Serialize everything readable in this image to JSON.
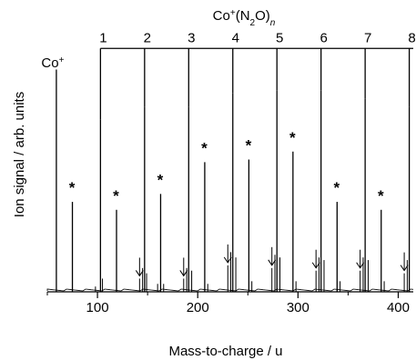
{
  "chart_data": {
    "type": "line",
    "title_parts": {
      "base": "Co",
      "charge": "+",
      "open": "(N",
      "sub": "2",
      "close": "O)",
      "n": "n"
    },
    "xlabel": "Mass-to-charge / u",
    "ylabel": "Ion signal / arb. units",
    "xlim": [
      50,
      415
    ],
    "ylim": [
      0,
      1.0
    ],
    "x_ticks": [
      100,
      200,
      300,
      400
    ],
    "x_minor_ticks": [
      50,
      150,
      250,
      350
    ],
    "peaks": [
      {
        "mz": 59,
        "intensity": 0.84,
        "label": "Co+"
      },
      {
        "mz": 75,
        "intensity": 0.34,
        "mark": "*"
      },
      {
        "mz": 103,
        "intensity": 0.65,
        "n": 1
      },
      {
        "mz": 119,
        "intensity": 0.31,
        "mark": "*"
      },
      {
        "mz": 147,
        "intensity": 0.7,
        "n": 2
      },
      {
        "mz": 163,
        "intensity": 0.37,
        "mark": "*"
      },
      {
        "mz": 191,
        "intensity": 0.7,
        "n": 3
      },
      {
        "mz": 207,
        "intensity": 0.49,
        "mark": "*"
      },
      {
        "mz": 235,
        "intensity": 0.75,
        "n": 4
      },
      {
        "mz": 251,
        "intensity": 0.5,
        "mark": "*"
      },
      {
        "mz": 279,
        "intensity": 0.76,
        "n": 5
      },
      {
        "mz": 295,
        "intensity": 0.53,
        "mark": "*"
      },
      {
        "mz": 323,
        "intensity": 0.76,
        "n": 6
      },
      {
        "mz": 339,
        "intensity": 0.34,
        "mark": "*"
      },
      {
        "mz": 367,
        "intensity": 0.73,
        "n": 7
      },
      {
        "mz": 383,
        "intensity": 0.31,
        "mark": "*"
      },
      {
        "mz": 411,
        "intensity": 0.7,
        "n": 8
      }
    ],
    "minor_peaks": [
      {
        "mz": 98,
        "intensity": 0.02
      },
      {
        "mz": 105,
        "intensity": 0.05
      },
      {
        "mz": 142,
        "intensity": 0.05,
        "arrow": true
      },
      {
        "mz": 145,
        "intensity": 0.09
      },
      {
        "mz": 149,
        "intensity": 0.07
      },
      {
        "mz": 160,
        "intensity": 0.03
      },
      {
        "mz": 166,
        "intensity": 0.03
      },
      {
        "mz": 186,
        "intensity": 0.05,
        "arrow": true
      },
      {
        "mz": 189,
        "intensity": 0.09
      },
      {
        "mz": 194,
        "intensity": 0.08
      },
      {
        "mz": 210,
        "intensity": 0.03
      },
      {
        "mz": 230,
        "intensity": 0.1,
        "arrow": true
      },
      {
        "mz": 233,
        "intensity": 0.15
      },
      {
        "mz": 238,
        "intensity": 0.13
      },
      {
        "mz": 254,
        "intensity": 0.04
      },
      {
        "mz": 274,
        "intensity": 0.09,
        "arrow": true
      },
      {
        "mz": 277,
        "intensity": 0.14
      },
      {
        "mz": 282,
        "intensity": 0.13
      },
      {
        "mz": 298,
        "intensity": 0.04
      },
      {
        "mz": 318,
        "intensity": 0.08,
        "arrow": true
      },
      {
        "mz": 321,
        "intensity": 0.13
      },
      {
        "mz": 326,
        "intensity": 0.12
      },
      {
        "mz": 342,
        "intensity": 0.04
      },
      {
        "mz": 362,
        "intensity": 0.08,
        "arrow": true
      },
      {
        "mz": 365,
        "intensity": 0.13
      },
      {
        "mz": 370,
        "intensity": 0.12
      },
      {
        "mz": 386,
        "intensity": 0.04
      },
      {
        "mz": 406,
        "intensity": 0.07,
        "arrow": true
      },
      {
        "mz": 409,
        "intensity": 0.12
      }
    ],
    "bracket_level": 0.92
  }
}
